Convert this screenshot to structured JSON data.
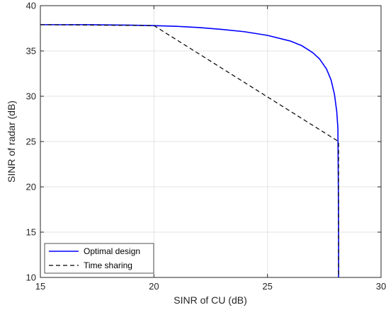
{
  "chart_data": {
    "type": "line",
    "title": "",
    "xlabel": "SINR of CU (dB)",
    "ylabel": "SINR of radar (dB)",
    "xlim": [
      15,
      30
    ],
    "ylim": [
      10,
      40
    ],
    "xticks": [
      15,
      20,
      25,
      30
    ],
    "xtick_labels": [
      "15",
      "20",
      "25",
      "30"
    ],
    "yticks": [
      10,
      15,
      20,
      25,
      30,
      35,
      40
    ],
    "ytick_labels": [
      "10",
      "15",
      "20",
      "25",
      "30",
      "35",
      "40"
    ],
    "grid": true,
    "legend_position": "bottom-left",
    "series": [
      {
        "name": "Optimal design",
        "color": "#0000ff",
        "style": "solid",
        "x": [
          15,
          17,
          19,
          20,
          21,
          22,
          23,
          24,
          25,
          26,
          26.5,
          27,
          27.3,
          27.6,
          27.8,
          27.95,
          28.05,
          28.1,
          28.12,
          28.13,
          28.13
        ],
        "y": [
          37.9,
          37.9,
          37.85,
          37.8,
          37.72,
          37.58,
          37.38,
          37.12,
          36.72,
          36.1,
          35.6,
          34.8,
          34.1,
          33.0,
          31.8,
          30.2,
          28.3,
          26.5,
          20,
          14,
          10
        ]
      },
      {
        "name": "Time sharing",
        "color": "#000000",
        "style": "dashed",
        "x": [
          15,
          20,
          28.13,
          28.13
        ],
        "y": [
          37.9,
          37.8,
          25.0,
          10
        ]
      }
    ]
  }
}
